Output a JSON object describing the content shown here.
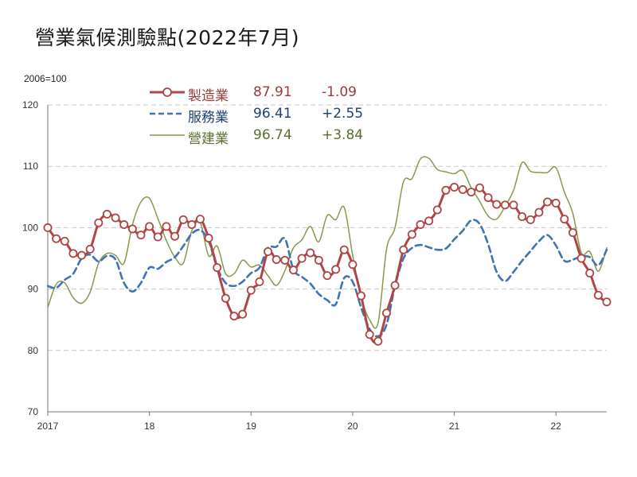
{
  "title": "營業氣候測驗點(2022年7月)",
  "unit_label": "2006=100",
  "colors": {
    "manufacturing": "#b04545",
    "services": "#3f73b5",
    "construction": "#849a4e",
    "grid": "#c8c8c8",
    "axis": "#777777"
  },
  "legend": [
    {
      "name": "製造業",
      "value": "87.91",
      "change": "-1.09",
      "color": "#9a3b3b",
      "style": "line-marker"
    },
    {
      "name": "服務業",
      "value": "96.41",
      "change": "+2.55",
      "color": "#1f3f73",
      "style": "dashed"
    },
    {
      "name": "營建業",
      "value": "96.74",
      "change": "+3.84",
      "color": "#5b6e2d",
      "style": "thin"
    }
  ],
  "chart_data": {
    "type": "line",
    "title": "營業氣候測驗點(2022年7月)",
    "ylabel": "2006=100",
    "xlabel": "",
    "ylim": [
      70,
      120
    ],
    "yticks": [
      "70",
      "80",
      "90",
      "100",
      "110",
      "120"
    ],
    "xticks": [
      {
        "label": "2017",
        "month": 0
      },
      {
        "label": "18",
        "month": 12
      },
      {
        "label": "19",
        "month": 24
      },
      {
        "label": "20",
        "month": 36
      },
      {
        "label": "21",
        "month": 48
      },
      {
        "label": "22",
        "month": 60
      }
    ],
    "grid": true,
    "series": [
      {
        "name": "製造業",
        "markers": true,
        "values": [
          100,
          98.2,
          97.8,
          95.8,
          95.5,
          96.5,
          100.8,
          102.2,
          101.6,
          100.5,
          99.8,
          98.8,
          100.2,
          98.5,
          100.2,
          98.6,
          101.3,
          100.5,
          101.4,
          98.3,
          93.5,
          88.5,
          85.6,
          85.9,
          89.8,
          91.2,
          96.1,
          94.8,
          94.7,
          93.1,
          95,
          95.9,
          94.7,
          92.2,
          93.2,
          96.4,
          94,
          88.9,
          82.6,
          81.5,
          86.1,
          90.6,
          96.4,
          98.9,
          100.5,
          101.1,
          102.9,
          106.1,
          106.6,
          106.2,
          105.8,
          106.5,
          104.9,
          103.8,
          103.7,
          103.7,
          101.8,
          101.3,
          102.5,
          104.2,
          104,
          101.4,
          99.2,
          95,
          92.6,
          89,
          87.91
        ]
      },
      {
        "name": "服務業",
        "markers": false,
        "values": [
          90.5,
          90.2,
          91.5,
          92.5,
          95,
          95.6,
          94.5,
          95.4,
          94.8,
          91,
          89.6,
          91,
          93.5,
          93.3,
          94.4,
          95.2,
          97,
          99,
          99.6,
          97.8,
          93.5,
          91,
          90.5,
          91.2,
          92.6,
          93.5,
          96.7,
          96.9,
          98.2,
          93.2,
          92,
          90.9,
          89.2,
          88.2,
          87.5,
          91.8,
          91.2,
          87,
          83.5,
          82.3,
          84.2,
          90.5,
          95,
          96.7,
          97.2,
          96.8,
          96.4,
          96.6,
          98.1,
          99.5,
          101.2,
          100.6,
          97.3,
          92.8,
          91.3,
          92.8,
          94.6,
          96.2,
          97.8,
          98.8,
          97.1,
          94.6,
          94.8,
          95.3,
          95.2,
          93.86,
          96.41
        ]
      },
      {
        "name": "營建業",
        "markers": false,
        "values": [
          87,
          90.8,
          91,
          88.6,
          87.7,
          89.5,
          94.2,
          95.8,
          95.5,
          94.2,
          100.5,
          104.2,
          104.8,
          101.5,
          97.9,
          95.2,
          94.2,
          99.5,
          100.8,
          95.4,
          97,
          92.5,
          92.5,
          94.7,
          93.6,
          93.9,
          92.2,
          90.6,
          93,
          96.7,
          98,
          100.2,
          97.7,
          102,
          101.3,
          103.3,
          95.5,
          88.7,
          85,
          84.5,
          96.5,
          100,
          107.5,
          108,
          111.2,
          111.3,
          109.5,
          109.1,
          108.8,
          109.3,
          106.5,
          104.3,
          101.9,
          101.4,
          103.5,
          106.1,
          110.6,
          109.2,
          109,
          109,
          109.8,
          105.8,
          102.3,
          95.9,
          96.1,
          92.9,
          96.74
        ]
      }
    ]
  }
}
